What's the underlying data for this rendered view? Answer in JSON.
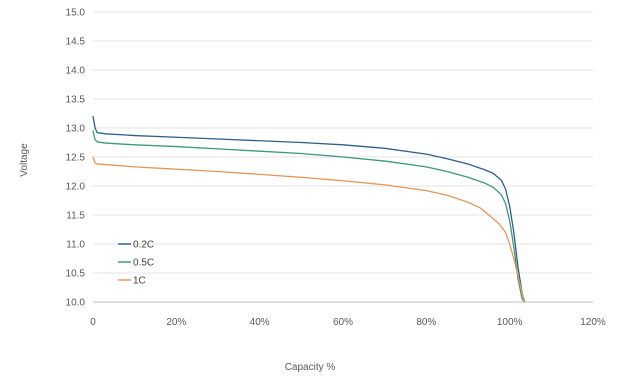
{
  "chart_data": {
    "type": "line",
    "title": "",
    "xlabel": "Capacity %",
    "ylabel": "Voltage",
    "xlim": [
      0,
      120
    ],
    "ylim": [
      10.0,
      15.0
    ],
    "x_ticks": [
      "0",
      "20%",
      "40%",
      "60%",
      "80%",
      "100%",
      "120%"
    ],
    "y_ticks": [
      "10.0",
      "10.5",
      "11.0",
      "11.5",
      "12.0",
      "12.5",
      "13.0",
      "13.5",
      "14.0",
      "14.5",
      "15.0"
    ],
    "grid": "horizontal",
    "legend_position": "lower-left",
    "series": [
      {
        "name": "0.2C",
        "color": "#2e5f8a",
        "x": [
          0,
          0.5,
          1,
          3,
          10,
          20,
          30,
          40,
          50,
          60,
          70,
          80,
          85,
          90,
          94,
          96,
          98,
          99,
          100,
          101,
          102,
          103,
          103.6
        ],
        "y": [
          13.2,
          13.0,
          12.92,
          12.9,
          12.87,
          12.84,
          12.81,
          12.78,
          12.75,
          12.71,
          12.65,
          12.55,
          12.47,
          12.38,
          12.28,
          12.22,
          12.1,
          11.95,
          11.65,
          11.2,
          10.6,
          10.15,
          10.0
        ]
      },
      {
        "name": "0.5C",
        "color": "#3a9a7a",
        "x": [
          0,
          0.5,
          1,
          3,
          10,
          20,
          30,
          40,
          50,
          60,
          70,
          80,
          85,
          90,
          94,
          96,
          98,
          99,
          100,
          101,
          102,
          103,
          103.6
        ],
        "y": [
          12.95,
          12.8,
          12.76,
          12.74,
          12.71,
          12.68,
          12.64,
          12.6,
          12.56,
          12.5,
          12.43,
          12.33,
          12.25,
          12.15,
          12.05,
          11.98,
          11.85,
          11.7,
          11.4,
          10.95,
          10.4,
          10.05,
          10.0
        ]
      },
      {
        "name": "1C",
        "color": "#e5975a",
        "x": [
          0,
          0.5,
          1,
          3,
          10,
          20,
          30,
          40,
          50,
          60,
          70,
          80,
          85,
          90,
          93,
          95,
          97,
          98,
          99,
          100,
          101,
          102,
          103,
          103.6
        ],
        "y": [
          12.5,
          12.4,
          12.38,
          12.37,
          12.33,
          12.29,
          12.25,
          12.2,
          12.15,
          12.09,
          12.02,
          11.92,
          11.84,
          11.72,
          11.62,
          11.5,
          11.38,
          11.3,
          11.2,
          11.0,
          10.75,
          10.45,
          10.15,
          10.0
        ]
      }
    ]
  }
}
